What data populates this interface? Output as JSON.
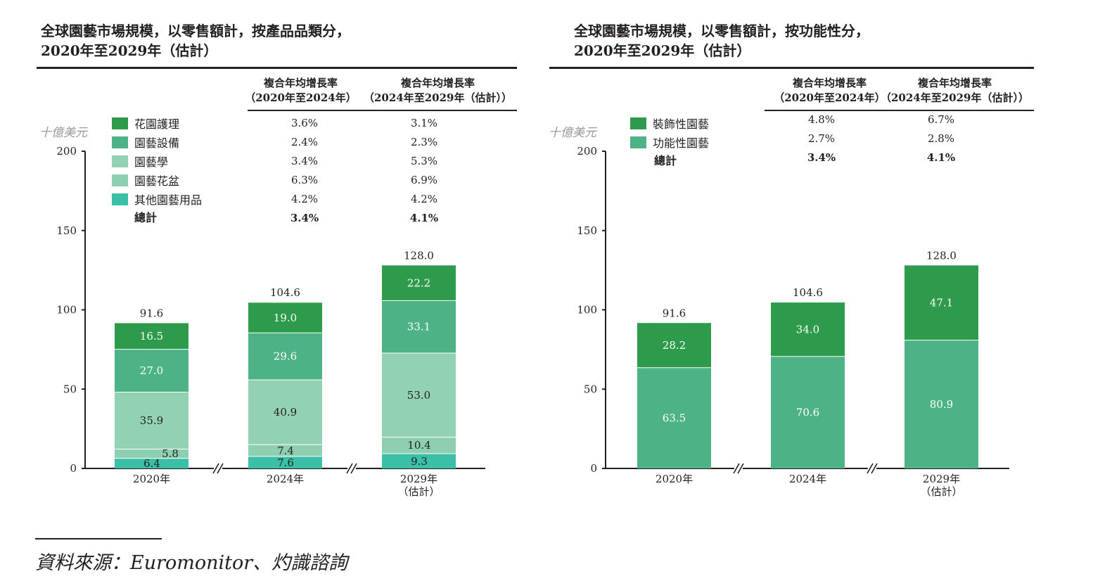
{
  "colors": {
    "dark_green": "#2e9a4b",
    "medium_green": "#4db386",
    "light_green": "#93d1b4",
    "pale_green": "#8dcfb0",
    "teal": "#3bbfa6",
    "axis": "#231f20"
  },
  "left": {
    "title_line1": "全球園藝市場規模，以零售額計，按產品品類分，",
    "title_line2": "2020年至2029年（估計）",
    "col1_line1": "複合年均增長率",
    "col1_line2": "（2020年至2024年）",
    "col2_line1": "複合年均增長率",
    "col2_line2": "（2024年至2029年（估計））",
    "unit": "十億美元",
    "legend": [
      {
        "label": "花園護理",
        "color": "#2e9a4b",
        "cagr1": "3.6%",
        "cagr2": "3.1%"
      },
      {
        "label": "園藝設備",
        "color": "#4db386",
        "cagr1": "2.4%",
        "cagr2": "2.3%"
      },
      {
        "label": "園藝學",
        "color": "#93d1b4",
        "cagr1": "3.4%",
        "cagr2": "5.3%"
      },
      {
        "label": "園藝花盆",
        "color": "#8dcfb0",
        "cagr1": "6.3%",
        "cagr2": "6.9%"
      },
      {
        "label": "其他園藝用品",
        "color": "#3bbfa6",
        "cagr1": "4.2%",
        "cagr2": "4.2%"
      }
    ],
    "total": {
      "label": "總計",
      "cagr1": "3.4%",
      "cagr2": "4.1%"
    }
  },
  "right": {
    "title_line1": "全球園藝市場規模，以零售額計，按功能性分，",
    "title_line2": "2020年至2029年（估計）",
    "col1_line1": "複合年均增長率",
    "col1_line2": "（2020年至2024年）",
    "col2_line1": "複合年均增長率",
    "col2_line2": "（2024年至2029年（估計））",
    "unit": "十億美元",
    "legend": [
      {
        "label": "裝飾性園藝",
        "color": "#2e9a4b",
        "cagr1": "4.8%",
        "cagr2": "6.7%"
      },
      {
        "label": "功能性園藝",
        "color": "#4db386",
        "cagr1": "2.7%",
        "cagr2": "2.8%"
      }
    ],
    "total": {
      "label": "總計",
      "cagr1": "3.4%",
      "cagr2": "4.1%"
    }
  },
  "chart_data": [
    {
      "type": "bar",
      "stacked": true,
      "title": "全球園藝市場規模，以零售額計，按產品品類分，2020年至2029年（估計）",
      "ylabel": "十億美元",
      "ylim": [
        0,
        200
      ],
      "yticks": [
        "0",
        "50",
        "100",
        "150",
        "200"
      ],
      "categories": [
        [
          "2020年"
        ],
        [
          "2024年"
        ],
        [
          "2029年",
          "（估計）"
        ]
      ],
      "series": [
        {
          "name": "其他園藝用品",
          "color": "#3bbfa6",
          "values": [
            6.4,
            7.6,
            9.3
          ],
          "labels": [
            "6.4",
            "7.6",
            "9.3"
          ]
        },
        {
          "name": "園藝花盆",
          "color": "#8dcfb0",
          "values": [
            5.8,
            7.4,
            10.4
          ],
          "labels": [
            "5.8",
            "7.4",
            "10.4"
          ]
        },
        {
          "name": "園藝學",
          "color": "#93d1b4",
          "values": [
            35.9,
            40.9,
            53.0
          ],
          "labels": [
            "35.9",
            "40.9",
            "53.0"
          ]
        },
        {
          "name": "園藝設備",
          "color": "#4db386",
          "values": [
            27.0,
            29.6,
            33.1
          ],
          "labels": [
            "27.0",
            "29.6",
            "33.1"
          ]
        },
        {
          "name": "花園護理",
          "color": "#2e9a4b",
          "values": [
            16.5,
            19.0,
            22.2
          ],
          "labels": [
            "16.5",
            "19.0",
            "22.2"
          ]
        }
      ],
      "totals": [
        91.6,
        104.6,
        128.0
      ],
      "total_labels": [
        "91.6",
        "104.6",
        "128.0"
      ]
    },
    {
      "type": "bar",
      "stacked": true,
      "title": "全球園藝市場規模，以零售額計，按功能性分，2020年至2029年（估計）",
      "ylabel": "十億美元",
      "ylim": [
        0,
        200
      ],
      "yticks": [
        "0",
        "50",
        "100",
        "150",
        "200"
      ],
      "categories": [
        [
          "2020年"
        ],
        [
          "2024年"
        ],
        [
          "2029年",
          "（估計）"
        ]
      ],
      "series": [
        {
          "name": "功能性園藝",
          "color": "#4db386",
          "values": [
            63.5,
            70.6,
            80.9
          ],
          "labels": [
            "63.5",
            "70.6",
            "80.9"
          ]
        },
        {
          "name": "裝飾性園藝",
          "color": "#2e9a4b",
          "values": [
            28.2,
            34.0,
            47.1
          ],
          "labels": [
            "28.2",
            "34.0",
            "47.1"
          ]
        }
      ],
      "totals": [
        91.6,
        104.6,
        128.0
      ],
      "total_labels": [
        "91.6",
        "104.6",
        "128.0"
      ]
    }
  ],
  "footer": {
    "source": "資料來源：Euromonitor、灼識諮詢"
  }
}
